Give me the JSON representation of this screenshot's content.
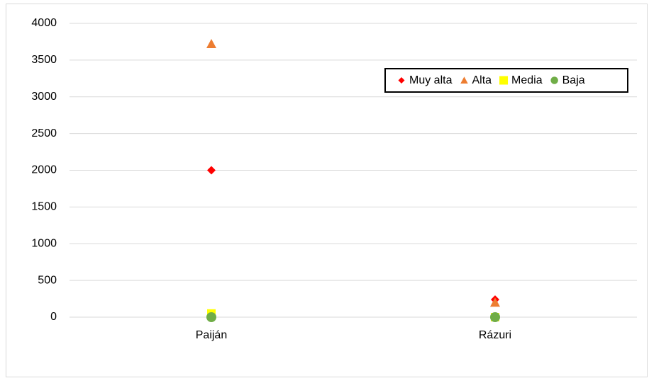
{
  "chart_data": {
    "type": "scatter",
    "categories": [
      "Paiján",
      "Rázuri"
    ],
    "series": [
      {
        "name": "Muy alta",
        "color": "#ff0000",
        "marker": "diamond",
        "values": [
          2000,
          240
        ]
      },
      {
        "name": "Alta",
        "color": "#ed7d31",
        "marker": "triangle",
        "values": [
          3720,
          200
        ]
      },
      {
        "name": "Media",
        "color": "#ffff00",
        "marker": "square",
        "values": [
          50,
          0
        ]
      },
      {
        "name": "Baja",
        "color": "#70ad47",
        "marker": "circle",
        "values": [
          0,
          0
        ]
      }
    ],
    "ylim": [
      0,
      4000
    ],
    "yticks": [
      0,
      500,
      1000,
      1500,
      2000,
      2500,
      3000,
      3500,
      4000
    ],
    "grid": true,
    "legend": "upper right"
  }
}
